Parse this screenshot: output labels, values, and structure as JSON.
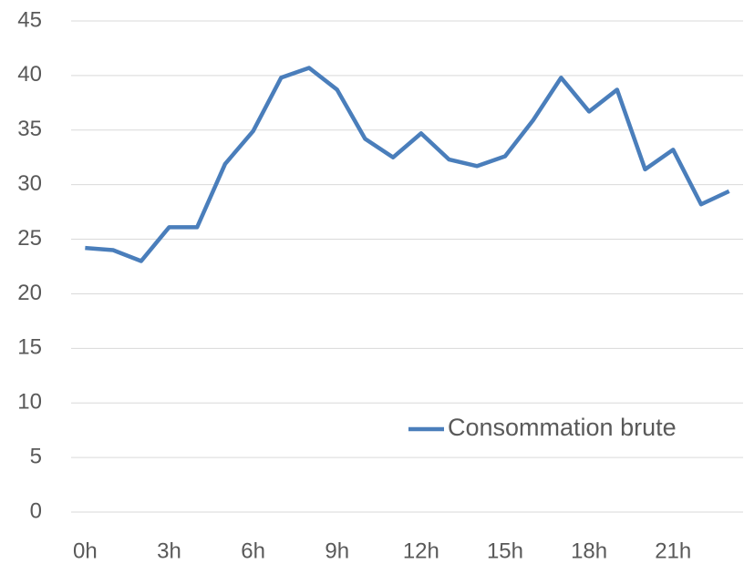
{
  "chart_data": {
    "type": "line",
    "categories": [
      "0h",
      null,
      null,
      "3h",
      null,
      null,
      "6h",
      null,
      null,
      "9h",
      null,
      null,
      "12h",
      null,
      null,
      "15h",
      null,
      null,
      "18h",
      null,
      null,
      "21h",
      null,
      null
    ],
    "series": [
      {
        "name": "Consommation brute",
        "color": "#4a7ebb",
        "values": [
          24.2,
          24.0,
          23.0,
          26.1,
          26.1,
          31.9,
          34.9,
          39.8,
          40.7,
          38.7,
          34.2,
          32.5,
          34.7,
          32.3,
          31.7,
          32.6,
          35.9,
          39.8,
          36.7,
          38.7,
          31.4,
          33.2,
          28.2,
          29.4
        ]
      }
    ],
    "ylim": [
      0,
      45
    ],
    "yticks": [
      0,
      5,
      10,
      15,
      20,
      25,
      30,
      35,
      40,
      45
    ],
    "grid": true,
    "legend": "lower right"
  }
}
